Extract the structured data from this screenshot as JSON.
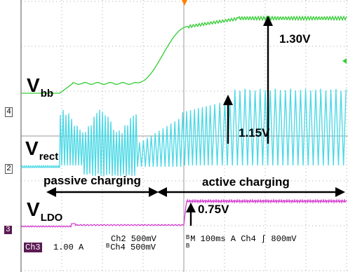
{
  "signals": {
    "vbb": {
      "main": "V",
      "sub": "bb"
    },
    "vrect": {
      "main": "V",
      "sub": "rect"
    },
    "vldo": {
      "main": "V",
      "sub": "LDO"
    }
  },
  "annotations": {
    "v130": "1.30V",
    "v115": "1.15V",
    "v075": "0.75V",
    "passive": "passive charging",
    "active": "active charging"
  },
  "channel_markers": {
    "ch4": "4",
    "ch2": "2",
    "ch3": "3"
  },
  "status": {
    "ch3_label": "Ch3",
    "ch3_scale": "1.00 A",
    "ch2_line": "Ch2  500mV",
    "ch4_line": "ᴮCh4  500mV",
    "bw_mark": "ᴮ",
    "timebase": "ᴮM 100ms  A  Ch4  ʃ  800mV"
  },
  "colors": {
    "background": "#ffffff",
    "vbb_trace": "#33cc33",
    "vrect_trace": "#4dd9e6",
    "vldo_trace": "#d43fcf",
    "ch3_box": "#5a1a52",
    "grid": "#9a9a9a",
    "trigger": "#ff8000"
  }
}
